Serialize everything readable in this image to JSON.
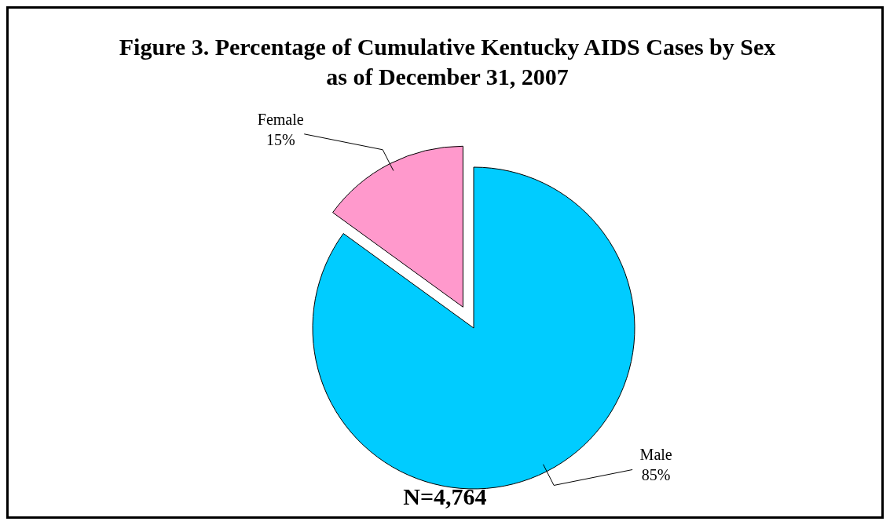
{
  "chart_data": {
    "type": "pie",
    "title": "Figure 3. Percentage of Cumulative Kentucky AIDS Cases by Sex\nas of December 31, 2007",
    "categories": [
      "Female",
      "Male"
    ],
    "values": [
      15,
      85
    ],
    "value_labels": [
      "15%",
      "85%"
    ],
    "colors": [
      "#ff99cc",
      "#00ccff"
    ],
    "annotations": [
      "N=4,764"
    ]
  }
}
